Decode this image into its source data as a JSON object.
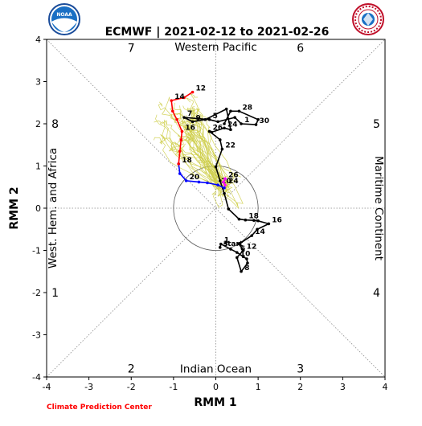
{
  "chart_data": {
    "type": "line",
    "title": "ECMWF | 2021-02-12 to 2021-02-26",
    "xlabel": "RMM 1",
    "ylabel": "RMM 2",
    "xlim": [
      -4,
      4
    ],
    "ylim": [
      -4,
      4
    ],
    "ticks": [
      "-4",
      "-3",
      "-2",
      "-1",
      "0",
      "1",
      "2",
      "3",
      "4"
    ],
    "grid": false,
    "unit_circle_radius": 1,
    "phase_labels": [
      "1",
      "2",
      "3",
      "4",
      "5",
      "6",
      "7",
      "8"
    ],
    "region_labels": {
      "top": "Western Pacific",
      "bottom": "Indian Ocean",
      "left": "West. Hem. and Africa",
      "right": "Maritime Continent"
    },
    "footer": "Climate Prediction Center",
    "start_label": "start",
    "colors": {
      "observed": "#000000",
      "forecast_week1": "#0000ff",
      "forecast_week2": "#ff0000",
      "ensemble": "#cccc44",
      "marker_magenta": "#ff00ff",
      "footer": "#ff0000"
    },
    "series": [
      {
        "name": "",
        "color": "#000000",
        "x": [
          0.1,
          0.12,
          0.35,
          0.5,
          0.65,
          0.73,
          0.75,
          0.6,
          0.5,
          0.65,
          0.55,
          0.85,
          0.98,
          1.25,
          1.0,
          0.9,
          0.7,
          0.55,
          0.3,
          0.2,
          0.1,
          0.0,
          0.15,
          0.1,
          -0.15,
          -0.1,
          0.2,
          0.35,
          0.25,
          -0.25,
          -0.55,
          -0.75,
          -0.15,
          0.05,
          0.45,
          0.6,
          0.95,
          1.0,
          0.55,
          0.35,
          0.2
        ],
        "y": [
          -0.93,
          -0.85,
          -0.97,
          -1.05,
          -1.15,
          -1.2,
          -1.3,
          -1.5,
          -1.17,
          -1.0,
          -0.85,
          -0.65,
          -0.5,
          -0.37,
          -0.3,
          -0.29,
          -0.28,
          -0.26,
          -0.02,
          0.35,
          0.65,
          0.98,
          1.4,
          1.62,
          1.82,
          1.8,
          1.9,
          1.86,
          2.35,
          2.1,
          2.05,
          2.15,
          2.1,
          2.05,
          2.15,
          2.0,
          1.98,
          2.1,
          2.3,
          2.3,
          2.0
        ],
        "labels": [
          {
            "text": "start",
            "i": 0
          },
          {
            "text": "1",
            "i": 1
          },
          {
            "text": "3",
            "i": 0
          },
          {
            "text": "6",
            "i": 3
          },
          {
            "text": "8",
            "i": 7
          },
          {
            "text": "10",
            "i": 8
          },
          {
            "text": "12",
            "i": 9
          },
          {
            "text": "14",
            "i": 11
          },
          {
            "text": "16",
            "i": 13
          },
          {
            "text": "18",
            "i": 16
          },
          {
            "text": "22",
            "i": 22
          },
          {
            "text": "24",
            "i": 26
          },
          {
            "text": "26",
            "i": 24
          },
          {
            "text": "28",
            "i": 38
          },
          {
            "text": "30",
            "i": 36
          },
          {
            "text": "1",
            "i": 35
          },
          {
            "text": "5",
            "i": 32
          },
          {
            "text": "7",
            "i": 31
          },
          {
            "text": "9",
            "i": 30
          }
        ]
      },
      {
        "name": "",
        "color": "#0000ff",
        "x": [
          0.2,
          0.05,
          -0.2,
          -0.4,
          -0.7,
          -0.85,
          -0.88
        ],
        "y": [
          0.48,
          0.55,
          0.6,
          0.62,
          0.65,
          0.82,
          1.05
        ],
        "labels": [
          {
            "text": "20",
            "i": 4
          },
          {
            "text": "20",
            "i": 1
          }
        ]
      },
      {
        "name": "",
        "color": "#ff0000",
        "x": [
          -0.88,
          -0.85,
          -0.82,
          -0.8,
          -0.92,
          -1.02,
          -1.05,
          -0.75,
          -0.55
        ],
        "y": [
          1.05,
          1.35,
          1.62,
          1.82,
          2.1,
          2.3,
          2.55,
          2.62,
          2.75
        ],
        "labels": [
          {
            "text": "18",
            "i": 0
          },
          {
            "text": "16",
            "i": 3
          },
          {
            "text": "14",
            "i": 6
          },
          {
            "text": "12",
            "i": 8
          }
        ]
      },
      {
        "name": "",
        "color": "#ff00ff",
        "x": [
          0.22,
          0.18,
          0.22
        ],
        "y": [
          0.7,
          0.62,
          0.55
        ],
        "labels": [
          {
            "text": "26",
            "i": 0
          },
          {
            "text": "24",
            "i": 2
          }
        ]
      }
    ]
  }
}
